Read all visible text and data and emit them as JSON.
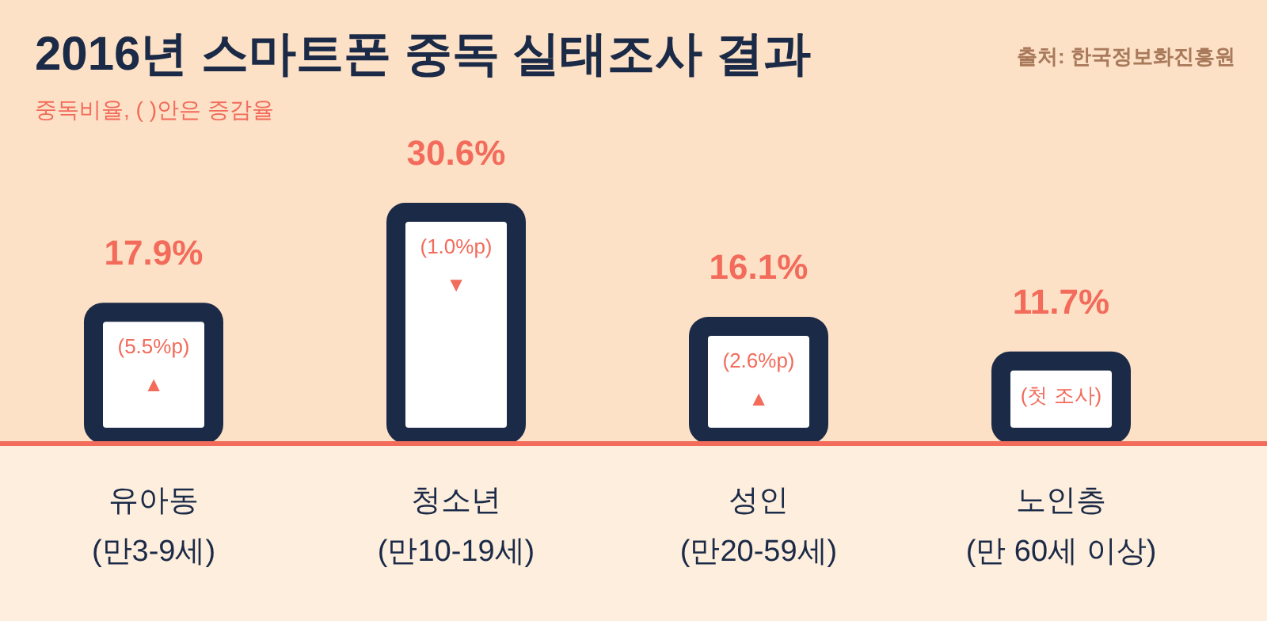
{
  "chart_data": {
    "type": "bar",
    "title": "2016년 스마트폰 중독 실태조사 결과",
    "subtitle": "중독비율, ( )안은 증감율",
    "categories": [
      "유아동\n(만3-9세)",
      "청소년\n(만10-19세)",
      "성인\n(만20-59세)",
      "노인층\n(만 60세 이상)"
    ],
    "values": [
      17.9,
      30.6,
      16.1,
      11.7
    ],
    "value_labels": [
      "17.9%",
      "30.6%",
      "16.1%",
      "11.7%"
    ],
    "color": "#1b2a47",
    "annotations": [
      "(5.5%p)\n▲",
      "(1.0%p)\n▼",
      "(2.6%p)\n▲",
      "(첫 조사)",
      "출처: 한국정보화진흥원"
    ]
  }
}
